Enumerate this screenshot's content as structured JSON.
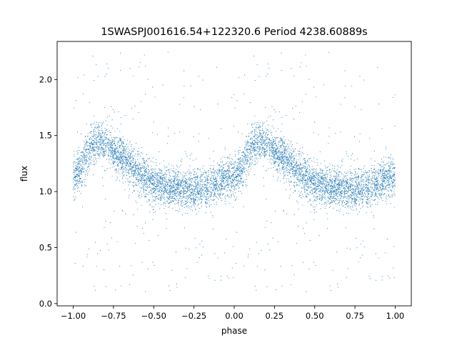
{
  "chart_data": {
    "type": "scatter",
    "title": "1SWASPJ001616.54+122320.6 Period 4238.60889s",
    "xlabel": "phase",
    "ylabel": "flux",
    "xlim": [
      -1.1,
      1.1
    ],
    "ylim": [
      -0.02,
      2.34
    ],
    "grid": false,
    "legend": "none",
    "marker_color": "#1f77b4",
    "x_ticks": [
      -1.0,
      -0.75,
      -0.5,
      -0.25,
      0.0,
      0.25,
      0.5,
      0.75,
      1.0
    ],
    "x_tick_labels": [
      "−1.00",
      "−0.75",
      "−0.50",
      "−0.25",
      "0.00",
      "0.25",
      "0.50",
      "0.75",
      "1.00"
    ],
    "y_ticks": [
      0.0,
      0.5,
      1.0,
      1.5,
      2.0
    ],
    "y_tick_labels": [
      "0.0",
      "0.5",
      "1.0",
      "1.5",
      "2.0"
    ],
    "phase_light_curve": {
      "phase": [
        0.0,
        0.05,
        0.1,
        0.15,
        0.2,
        0.25,
        0.3,
        0.35,
        0.4,
        0.45,
        0.5,
        0.55,
        0.6,
        0.65,
        0.7,
        0.75,
        0.8,
        0.85,
        0.9,
        0.95
      ],
      "median_flux": [
        1.12,
        1.22,
        1.38,
        1.45,
        1.43,
        1.36,
        1.31,
        1.25,
        1.18,
        1.12,
        1.08,
        1.06,
        1.04,
        1.03,
        1.02,
        1.02,
        1.03,
        1.05,
        1.08,
        1.12
      ],
      "scatter_sigma": 0.09,
      "point_count_per_cycle": 3600,
      "outlier_fraction": 0.06,
      "outlier_range": [
        0.1,
        2.25
      ]
    }
  }
}
